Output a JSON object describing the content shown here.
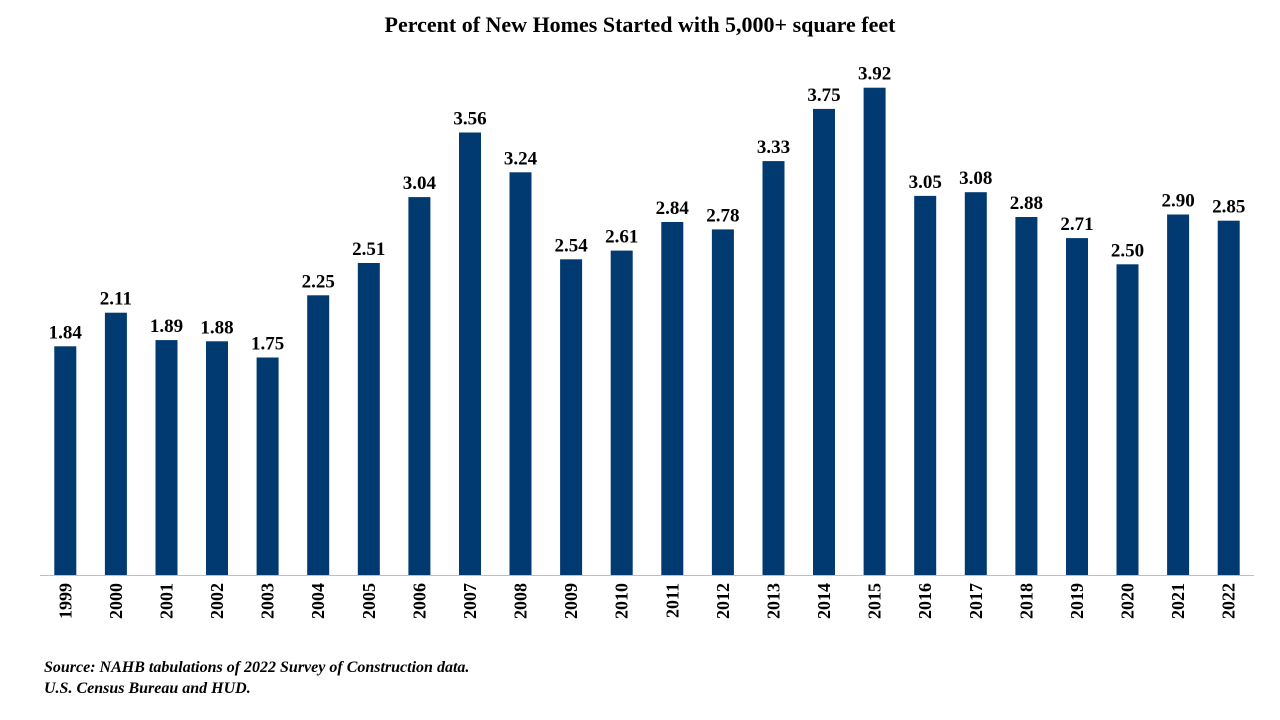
{
  "chart_data": {
    "type": "bar",
    "title": "Percent of New Homes Started with 5,000+ square feet",
    "xlabel": "",
    "ylabel": "",
    "categories": [
      "1999",
      "2000",
      "2001",
      "2002",
      "2003",
      "2004",
      "2005",
      "2006",
      "2007",
      "2008",
      "2009",
      "2010",
      "2011",
      "2012",
      "2013",
      "2014",
      "2015",
      "2016",
      "2017",
      "2018",
      "2019",
      "2020",
      "2021",
      "2022"
    ],
    "values": [
      1.84,
      2.11,
      1.89,
      1.88,
      1.75,
      2.25,
      2.51,
      3.04,
      3.56,
      3.24,
      2.54,
      2.61,
      2.84,
      2.78,
      3.33,
      3.75,
      3.92,
      3.05,
      3.08,
      2.88,
      2.71,
      2.5,
      2.9,
      2.85
    ],
    "value_labels": [
      "1.84",
      "2.11",
      "1.89",
      "1.88",
      "1.75",
      "2.25",
      "2.51",
      "3.04",
      "3.56",
      "3.24",
      "2.54",
      "2.61",
      "2.84",
      "2.78",
      "3.33",
      "3.75",
      "3.92",
      "3.05",
      "3.08",
      "2.88",
      "2.71",
      "2.50",
      "2.90",
      "2.85"
    ],
    "ylim": [
      0,
      4
    ],
    "grid": false,
    "legend": "none",
    "bar_color": "#003a70",
    "axis_color": "#bfbfbf",
    "x_tick_rotation": "vertical"
  },
  "source": {
    "line1": "Source: NAHB tabulations of 2022 Survey of Construction data.",
    "line2": "U.S. Census Bureau and HUD."
  }
}
